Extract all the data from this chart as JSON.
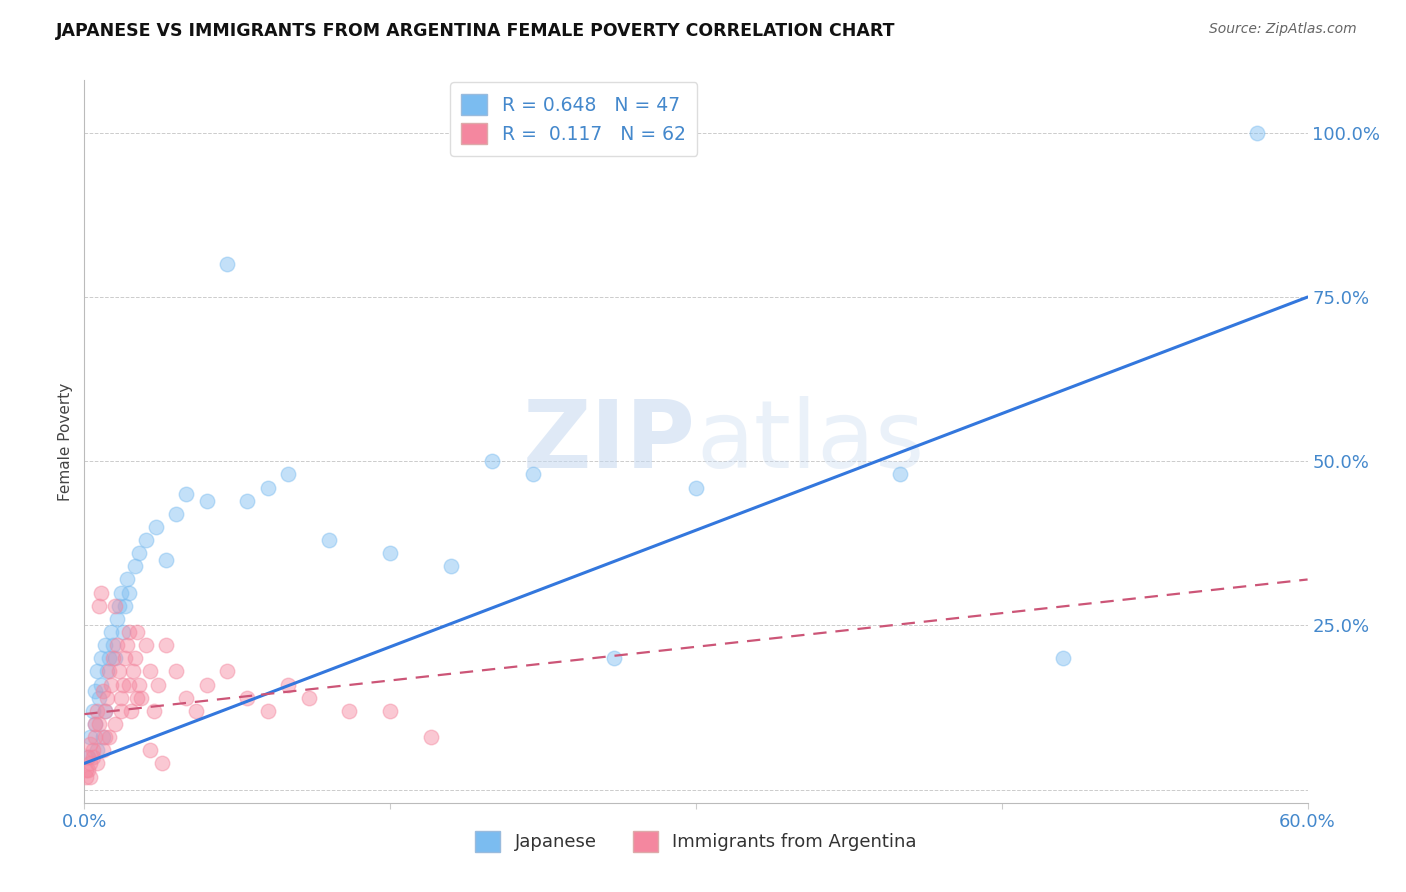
{
  "title": "JAPANESE VS IMMIGRANTS FROM ARGENTINA FEMALE POVERTY CORRELATION CHART",
  "source": "Source: ZipAtlas.com",
  "ylabel": "Female Poverty",
  "watermark_zip": "ZIP",
  "watermark_atlas": "atlas",
  "ytick_labels": [
    "",
    "25.0%",
    "50.0%",
    "75.0%",
    "100.0%"
  ],
  "ytick_values": [
    0.0,
    0.25,
    0.5,
    0.75,
    1.0
  ],
  "xmin": 0.0,
  "xmax": 0.6,
  "ymin": -0.02,
  "ymax": 1.08,
  "blue_R": "0.648",
  "blue_N": "47",
  "pink_R": "0.117",
  "pink_N": "62",
  "blue_color": "#7bbcf0",
  "pink_color": "#f4879f",
  "blue_line_color": "#3377dd",
  "pink_line_color": "#cc5577",
  "tick_color": "#4488cc",
  "legend_label_blue": "Japanese",
  "legend_label_pink": "Immigrants from Argentina",
  "blue_scatter_x": [
    0.002,
    0.003,
    0.004,
    0.005,
    0.005,
    0.006,
    0.006,
    0.007,
    0.008,
    0.008,
    0.009,
    0.01,
    0.01,
    0.011,
    0.012,
    0.013,
    0.014,
    0.015,
    0.016,
    0.017,
    0.018,
    0.019,
    0.02,
    0.021,
    0.022,
    0.025,
    0.027,
    0.03,
    0.035,
    0.04,
    0.045,
    0.05,
    0.06,
    0.07,
    0.08,
    0.09,
    0.1,
    0.12,
    0.15,
    0.18,
    0.2,
    0.22,
    0.26,
    0.3,
    0.4,
    0.48,
    0.575
  ],
  "blue_scatter_y": [
    0.05,
    0.08,
    0.12,
    0.1,
    0.15,
    0.06,
    0.18,
    0.14,
    0.16,
    0.2,
    0.08,
    0.22,
    0.12,
    0.18,
    0.2,
    0.24,
    0.22,
    0.2,
    0.26,
    0.28,
    0.3,
    0.24,
    0.28,
    0.32,
    0.3,
    0.34,
    0.36,
    0.38,
    0.4,
    0.35,
    0.42,
    0.45,
    0.44,
    0.8,
    0.44,
    0.46,
    0.48,
    0.38,
    0.36,
    0.34,
    0.5,
    0.48,
    0.2,
    0.46,
    0.48,
    0.2,
    1.0
  ],
  "pink_scatter_x": [
    0.001,
    0.002,
    0.002,
    0.003,
    0.003,
    0.004,
    0.005,
    0.005,
    0.006,
    0.007,
    0.007,
    0.008,
    0.009,
    0.01,
    0.01,
    0.011,
    0.012,
    0.013,
    0.014,
    0.015,
    0.016,
    0.017,
    0.018,
    0.019,
    0.02,
    0.021,
    0.022,
    0.023,
    0.024,
    0.025,
    0.026,
    0.027,
    0.028,
    0.03,
    0.032,
    0.034,
    0.036,
    0.04,
    0.045,
    0.05,
    0.055,
    0.06,
    0.07,
    0.08,
    0.09,
    0.1,
    0.11,
    0.13,
    0.15,
    0.17,
    0.003,
    0.006,
    0.009,
    0.012,
    0.015,
    0.018,
    0.022,
    0.026,
    0.032,
    0.038,
    0.001,
    0.004
  ],
  "pink_scatter_y": [
    0.02,
    0.05,
    0.03,
    0.07,
    0.04,
    0.06,
    0.1,
    0.08,
    0.12,
    0.1,
    0.28,
    0.3,
    0.15,
    0.12,
    0.08,
    0.14,
    0.18,
    0.16,
    0.2,
    0.28,
    0.22,
    0.18,
    0.14,
    0.16,
    0.2,
    0.22,
    0.24,
    0.12,
    0.18,
    0.2,
    0.24,
    0.16,
    0.14,
    0.22,
    0.18,
    0.12,
    0.16,
    0.22,
    0.18,
    0.14,
    0.12,
    0.16,
    0.18,
    0.14,
    0.12,
    0.16,
    0.14,
    0.12,
    0.12,
    0.08,
    0.02,
    0.04,
    0.06,
    0.08,
    0.1,
    0.12,
    0.16,
    0.14,
    0.06,
    0.04,
    0.03,
    0.05
  ],
  "blue_trendline_x": [
    0.0,
    0.6
  ],
  "blue_trendline_y": [
    0.04,
    0.75
  ],
  "pink_trendline_x": [
    0.0,
    0.6
  ],
  "pink_trendline_y": [
    0.115,
    0.32
  ],
  "grid_color": "#cccccc",
  "background_color": "#ffffff"
}
